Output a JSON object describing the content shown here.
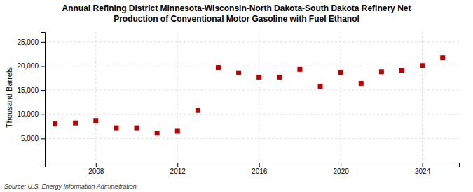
{
  "chart_data": {
    "type": "scatter",
    "title": "Annual Refining District Minnesota-Wisconsin-North Dakota-South Dakota Refinery Net\nProduction of Conventional Motor Gasoline with Fuel Ethanol",
    "ylabel": "Thousand Barrels",
    "annotation": "Source: U.S. Energy Information Administration",
    "x": [
      2006,
      2007,
      2008,
      2009,
      2010,
      2011,
      2012,
      2013,
      2014,
      2015,
      2016,
      2017,
      2018,
      2019,
      2020,
      2021,
      2022,
      2023,
      2024,
      2025
    ],
    "values": [
      8000,
      8200,
      8700,
      7200,
      7200,
      6100,
      6500,
      10800,
      19700,
      18600,
      17700,
      17700,
      19300,
      15800,
      18700,
      16400,
      18800,
      19100,
      20100,
      21700
    ],
    "color": "#bb0000",
    "marker": "square",
    "xlim": [
      2005.5,
      2025.8
    ],
    "ylim": [
      0,
      27000
    ],
    "xticks": [
      2008,
      2012,
      2016,
      2020,
      2024
    ],
    "yticks": [
      {
        "value": 5000,
        "label": "5,000"
      },
      {
        "value": 10000,
        "label": "10,000"
      },
      {
        "value": 15000,
        "label": "15,000"
      },
      {
        "value": 20000,
        "label": "20,000"
      },
      {
        "value": 25000,
        "label": "25,000"
      }
    ],
    "grid": true
  }
}
